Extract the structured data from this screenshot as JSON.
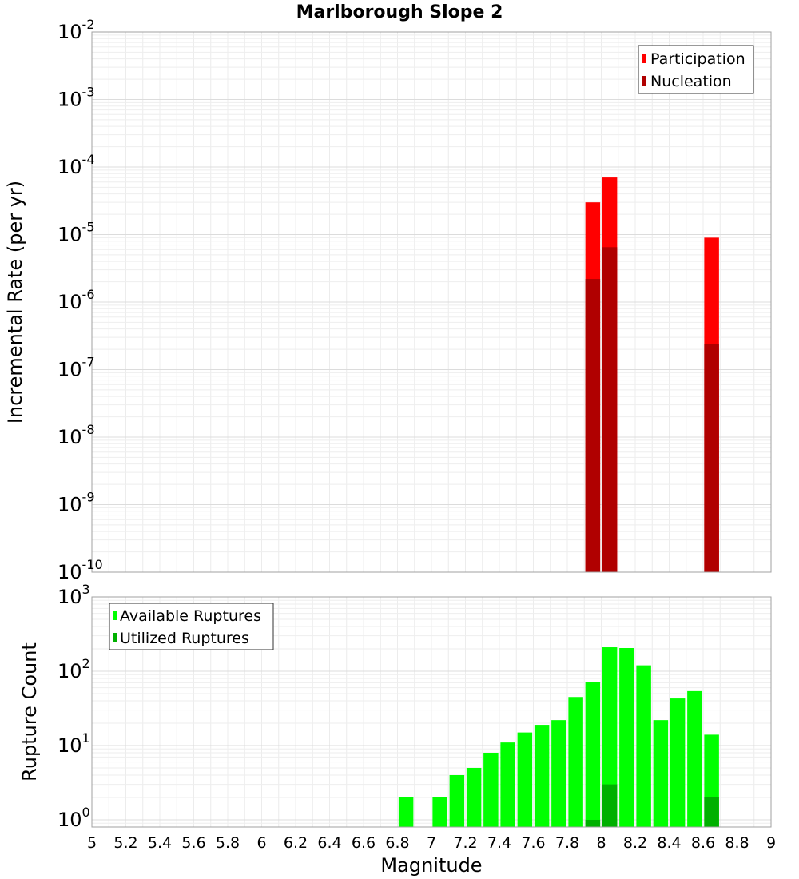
{
  "chart_data": [
    {
      "type": "bar",
      "title": "Marlborough Slope 2",
      "ylabel": "Incremental Rate (per yr)",
      "yscale": "log",
      "ylim": [
        1e-10,
        0.01
      ],
      "xlim": [
        5,
        9
      ],
      "grid": true,
      "legend_position": "top-right",
      "x": [
        7.95,
        8.05,
        8.65
      ],
      "series": [
        {
          "name": "Participation",
          "color": "#ff0000",
          "values": [
            3e-05,
            7e-05,
            9e-06
          ]
        },
        {
          "name": "Nucleation",
          "color": "#b00000",
          "values": [
            2.2e-06,
            6.5e-06,
            2.4e-07
          ]
        }
      ],
      "y_ticks": [
        {
          "base": "10",
          "exp": "-2"
        },
        {
          "base": "10",
          "exp": "-3"
        },
        {
          "base": "10",
          "exp": "-4"
        },
        {
          "base": "10",
          "exp": "-5"
        },
        {
          "base": "10",
          "exp": "-6"
        },
        {
          "base": "10",
          "exp": "-7"
        },
        {
          "base": "10",
          "exp": "-8"
        },
        {
          "base": "10",
          "exp": "-9"
        },
        {
          "base": "10",
          "exp": "-10"
        }
      ]
    },
    {
      "type": "bar",
      "ylabel": "Rupture Count",
      "xlabel": "Magnitude",
      "yscale": "log",
      "ylim": [
        0.8,
        1000
      ],
      "xlim": [
        5,
        9
      ],
      "grid": true,
      "legend_position": "top-left",
      "x": [
        6.85,
        7.05,
        7.15,
        7.25,
        7.35,
        7.45,
        7.55,
        7.65,
        7.75,
        7.85,
        7.95,
        8.05,
        8.15,
        8.25,
        8.35,
        8.45,
        8.55,
        8.65
      ],
      "series": [
        {
          "name": "Available Ruptures",
          "color": "#00ff00",
          "values": [
            2,
            2,
            4,
            5,
            8,
            11,
            15,
            19,
            22,
            45,
            72,
            210,
            205,
            120,
            22,
            43,
            54,
            14
          ]
        },
        {
          "name": "Utilized Ruptures",
          "color": "#00b000",
          "values": [
            0,
            0,
            0,
            0,
            0,
            0,
            0,
            0,
            0,
            0,
            1,
            3,
            0,
            0,
            0,
            0,
            0,
            2
          ]
        }
      ],
      "y_ticks": [
        {
          "base": "10",
          "exp": "3"
        },
        {
          "base": "10",
          "exp": "2"
        },
        {
          "base": "10",
          "exp": "1"
        },
        {
          "base": "10",
          "exp": "0"
        }
      ],
      "x_ticks": [
        "5",
        "5.2",
        "5.4",
        "5.6",
        "5.8",
        "6",
        "6.2",
        "6.4",
        "6.6",
        "6.8",
        "7",
        "7.2",
        "7.4",
        "7.6",
        "7.8",
        "8",
        "8.2",
        "8.4",
        "8.6",
        "8.8",
        "9"
      ]
    }
  ]
}
